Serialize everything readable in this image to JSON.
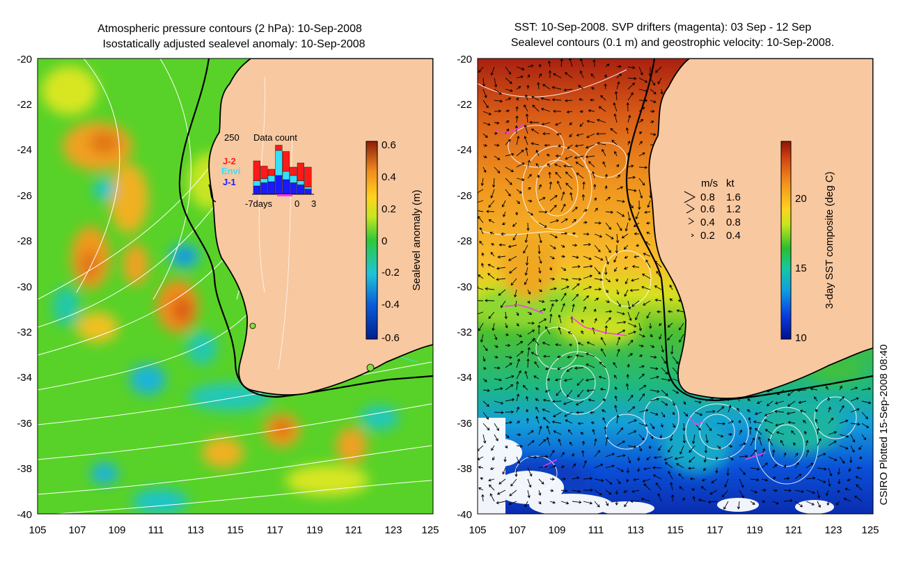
{
  "left_panel": {
    "title_line1": "Atmospheric pressure contours (2 hPa): 10-Sep-2008",
    "title_line2": "Isostatically adjusted sealevel anomaly: 10-Sep-2008",
    "lat_ticks": [
      "-20",
      "-22",
      "-24",
      "-26",
      "-28",
      "-30",
      "-32",
      "-34",
      "-36",
      "-38",
      "-40"
    ],
    "lon_ticks": [
      "105",
      "107",
      "109",
      "111",
      "113",
      "115",
      "117",
      "119",
      "121",
      "123",
      "125"
    ],
    "inset": {
      "count_label": "250",
      "title": "Data count",
      "legend": [
        {
          "label": "J-2",
          "color": "#ff1a1a"
        },
        {
          "label": "Envi",
          "color": "#33e0ff"
        },
        {
          "label": "J-1",
          "color": "#1a1aff"
        }
      ],
      "x_labels": [
        "-7days",
        "0",
        "3"
      ],
      "bars": [
        {
          "j1": 40,
          "envi": 25,
          "j2": 95
        },
        {
          "j1": 55,
          "envi": 20,
          "j2": 60
        },
        {
          "j1": 60,
          "envi": 30,
          "j2": 30
        },
        {
          "j1": 90,
          "envi": 120,
          "j2": 25
        },
        {
          "j1": 70,
          "envi": 40,
          "j2": 95
        },
        {
          "j1": 55,
          "envi": 35,
          "j2": 40
        },
        {
          "j1": 45,
          "envi": 20,
          "j2": 85
        },
        {
          "j1": 25,
          "envi": 10,
          "j2": 95
        }
      ]
    },
    "colorbar": {
      "label": "Sealevel anomaly (m)",
      "ticks": [
        "0.6",
        "0.4",
        "0.2",
        "0",
        "-0.2",
        "-0.4",
        "-0.6"
      ]
    }
  },
  "right_panel": {
    "title_line1": "SST: 10-Sep-2008. SVP drifters (magenta): 03 Sep - 12 Sep",
    "title_line2": "Sealevel contours (0.1 m) and geostrophic velocity: 10-Sep-2008.",
    "lat_ticks": [
      "-20",
      "-22",
      "-24",
      "-26",
      "-28",
      "-30",
      "-32",
      "-34",
      "-36",
      "-38",
      "-40"
    ],
    "lon_ticks": [
      "105",
      "107",
      "109",
      "111",
      "113",
      "115",
      "117",
      "119",
      "121",
      "123",
      "125"
    ],
    "speed_legend": {
      "header_ms": "m/s",
      "header_kt": "kt",
      "rows": [
        {
          "ms": "0.8",
          "kt": "1.6"
        },
        {
          "ms": "0.6",
          "kt": "1.2"
        },
        {
          "ms": "0.4",
          "kt": "0.8"
        },
        {
          "ms": "0.2",
          "kt": "0.4"
        }
      ]
    },
    "colorbar": {
      "label": "3-day SST composite (deg C)",
      "ticks": [
        "20",
        "15",
        "10"
      ]
    }
  },
  "credit": "CSIRO Plotted 15-Sep-2008 08:40",
  "colors": {
    "land": "#f8c8a0",
    "coast": "#000000",
    "contour": "#ffffff",
    "drifter": "#ff33ff",
    "cyan_line": "#33e0e0"
  }
}
